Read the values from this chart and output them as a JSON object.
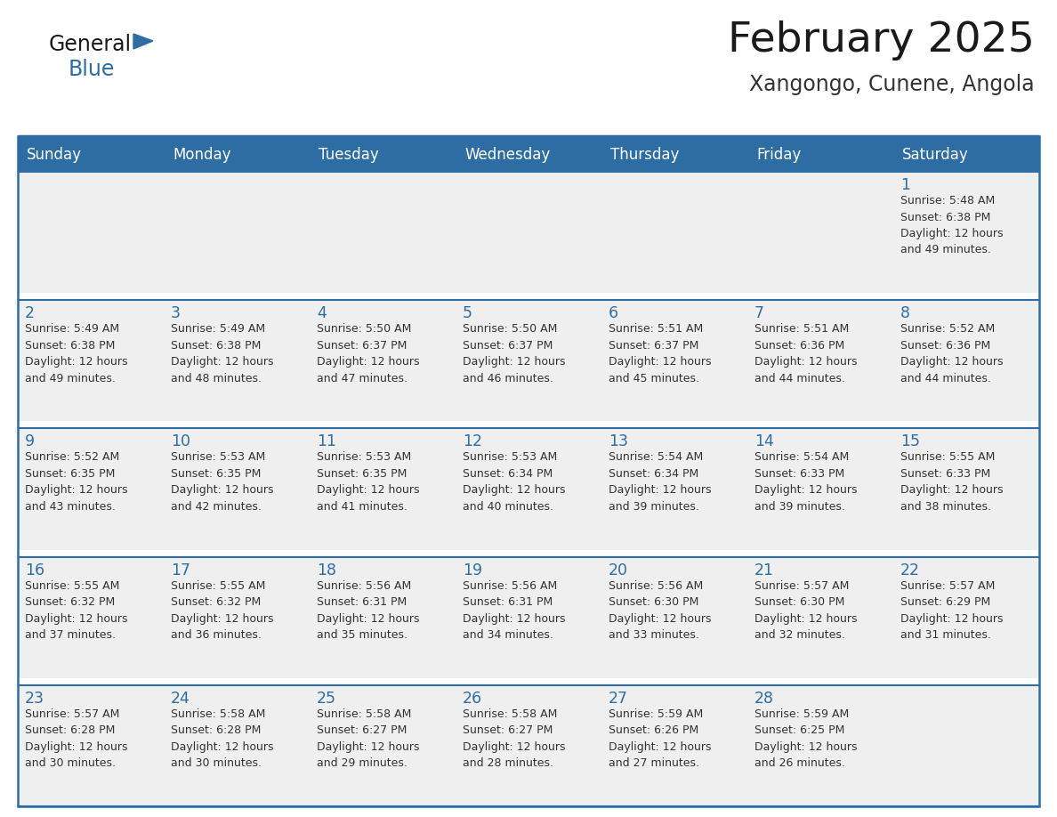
{
  "title": "February 2025",
  "subtitle": "Xangongo, Cunene, Angola",
  "days_of_week": [
    "Sunday",
    "Monday",
    "Tuesday",
    "Wednesday",
    "Thursday",
    "Friday",
    "Saturday"
  ],
  "header_bg": "#2E6DA4",
  "header_text": "#FFFFFF",
  "cell_bg": "#EFEFEF",
  "cell_bg_empty": "#FFFFFF",
  "row_sep_color": "#2E6DA4",
  "border_color": "#2E6DA4",
  "outer_border_color": "#2E6DA4",
  "title_color": "#1a1a1a",
  "subtitle_color": "#333333",
  "day_number_color": "#2E6DA4",
  "cell_text_color": "#333333",
  "calendar_data": [
    [
      {
        "day": null,
        "info": null
      },
      {
        "day": null,
        "info": null
      },
      {
        "day": null,
        "info": null
      },
      {
        "day": null,
        "info": null
      },
      {
        "day": null,
        "info": null
      },
      {
        "day": null,
        "info": null
      },
      {
        "day": 1,
        "info": "Sunrise: 5:48 AM\nSunset: 6:38 PM\nDaylight: 12 hours\nand 49 minutes."
      }
    ],
    [
      {
        "day": 2,
        "info": "Sunrise: 5:49 AM\nSunset: 6:38 PM\nDaylight: 12 hours\nand 49 minutes."
      },
      {
        "day": 3,
        "info": "Sunrise: 5:49 AM\nSunset: 6:38 PM\nDaylight: 12 hours\nand 48 minutes."
      },
      {
        "day": 4,
        "info": "Sunrise: 5:50 AM\nSunset: 6:37 PM\nDaylight: 12 hours\nand 47 minutes."
      },
      {
        "day": 5,
        "info": "Sunrise: 5:50 AM\nSunset: 6:37 PM\nDaylight: 12 hours\nand 46 minutes."
      },
      {
        "day": 6,
        "info": "Sunrise: 5:51 AM\nSunset: 6:37 PM\nDaylight: 12 hours\nand 45 minutes."
      },
      {
        "day": 7,
        "info": "Sunrise: 5:51 AM\nSunset: 6:36 PM\nDaylight: 12 hours\nand 44 minutes."
      },
      {
        "day": 8,
        "info": "Sunrise: 5:52 AM\nSunset: 6:36 PM\nDaylight: 12 hours\nand 44 minutes."
      }
    ],
    [
      {
        "day": 9,
        "info": "Sunrise: 5:52 AM\nSunset: 6:35 PM\nDaylight: 12 hours\nand 43 minutes."
      },
      {
        "day": 10,
        "info": "Sunrise: 5:53 AM\nSunset: 6:35 PM\nDaylight: 12 hours\nand 42 minutes."
      },
      {
        "day": 11,
        "info": "Sunrise: 5:53 AM\nSunset: 6:35 PM\nDaylight: 12 hours\nand 41 minutes."
      },
      {
        "day": 12,
        "info": "Sunrise: 5:53 AM\nSunset: 6:34 PM\nDaylight: 12 hours\nand 40 minutes."
      },
      {
        "day": 13,
        "info": "Sunrise: 5:54 AM\nSunset: 6:34 PM\nDaylight: 12 hours\nand 39 minutes."
      },
      {
        "day": 14,
        "info": "Sunrise: 5:54 AM\nSunset: 6:33 PM\nDaylight: 12 hours\nand 39 minutes."
      },
      {
        "day": 15,
        "info": "Sunrise: 5:55 AM\nSunset: 6:33 PM\nDaylight: 12 hours\nand 38 minutes."
      }
    ],
    [
      {
        "day": 16,
        "info": "Sunrise: 5:55 AM\nSunset: 6:32 PM\nDaylight: 12 hours\nand 37 minutes."
      },
      {
        "day": 17,
        "info": "Sunrise: 5:55 AM\nSunset: 6:32 PM\nDaylight: 12 hours\nand 36 minutes."
      },
      {
        "day": 18,
        "info": "Sunrise: 5:56 AM\nSunset: 6:31 PM\nDaylight: 12 hours\nand 35 minutes."
      },
      {
        "day": 19,
        "info": "Sunrise: 5:56 AM\nSunset: 6:31 PM\nDaylight: 12 hours\nand 34 minutes."
      },
      {
        "day": 20,
        "info": "Sunrise: 5:56 AM\nSunset: 6:30 PM\nDaylight: 12 hours\nand 33 minutes."
      },
      {
        "day": 21,
        "info": "Sunrise: 5:57 AM\nSunset: 6:30 PM\nDaylight: 12 hours\nand 32 minutes."
      },
      {
        "day": 22,
        "info": "Sunrise: 5:57 AM\nSunset: 6:29 PM\nDaylight: 12 hours\nand 31 minutes."
      }
    ],
    [
      {
        "day": 23,
        "info": "Sunrise: 5:57 AM\nSunset: 6:28 PM\nDaylight: 12 hours\nand 30 minutes."
      },
      {
        "day": 24,
        "info": "Sunrise: 5:58 AM\nSunset: 6:28 PM\nDaylight: 12 hours\nand 30 minutes."
      },
      {
        "day": 25,
        "info": "Sunrise: 5:58 AM\nSunset: 6:27 PM\nDaylight: 12 hours\nand 29 minutes."
      },
      {
        "day": 26,
        "info": "Sunrise: 5:58 AM\nSunset: 6:27 PM\nDaylight: 12 hours\nand 28 minutes."
      },
      {
        "day": 27,
        "info": "Sunrise: 5:59 AM\nSunset: 6:26 PM\nDaylight: 12 hours\nand 27 minutes."
      },
      {
        "day": 28,
        "info": "Sunrise: 5:59 AM\nSunset: 6:25 PM\nDaylight: 12 hours\nand 26 minutes."
      },
      {
        "day": null,
        "info": null
      }
    ]
  ],
  "logo_color_general": "#1a1a1a",
  "logo_color_blue": "#2E6DA4",
  "figsize": [
    11.88,
    9.18
  ],
  "dpi": 100
}
